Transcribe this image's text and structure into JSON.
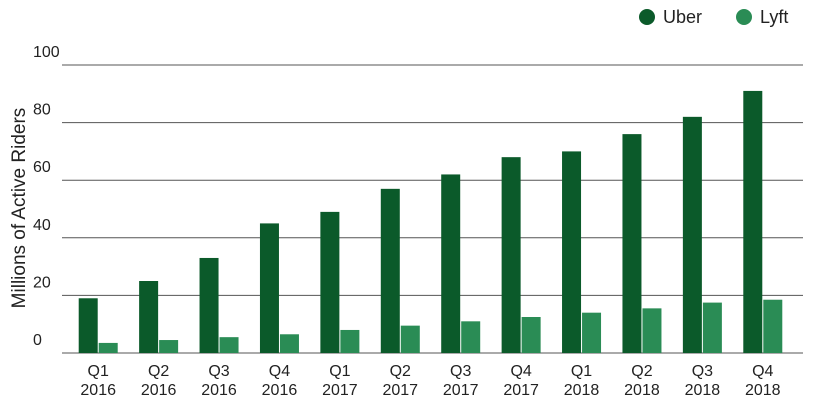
{
  "chart_data": {
    "type": "bar",
    "y_label": "Millions of Active Riders",
    "categories": [
      "Q1 2016",
      "Q2 2016",
      "Q3 2016",
      "Q4 2016",
      "Q1 2017",
      "Q2 2017",
      "Q3 2017",
      "Q4 2017",
      "Q1 2018",
      "Q2 2018",
      "Q3 2018",
      "Q4 2018"
    ],
    "series": [
      {
        "name": "Uber",
        "color": "#0b5a2a",
        "values": [
          19,
          25,
          33,
          45,
          49,
          57,
          62,
          68,
          70,
          76,
          82,
          91
        ]
      },
      {
        "name": "Lyft",
        "color": "#2a8c55",
        "values": [
          3.5,
          4.5,
          5.5,
          6.5,
          8,
          9.5,
          11,
          12.5,
          14,
          15.5,
          17.5,
          18.5
        ]
      }
    ],
    "ylim": [
      0,
      100
    ],
    "yticks": [
      0,
      20,
      40,
      60,
      80,
      100
    ],
    "grid": true,
    "legend": "top-right"
  }
}
